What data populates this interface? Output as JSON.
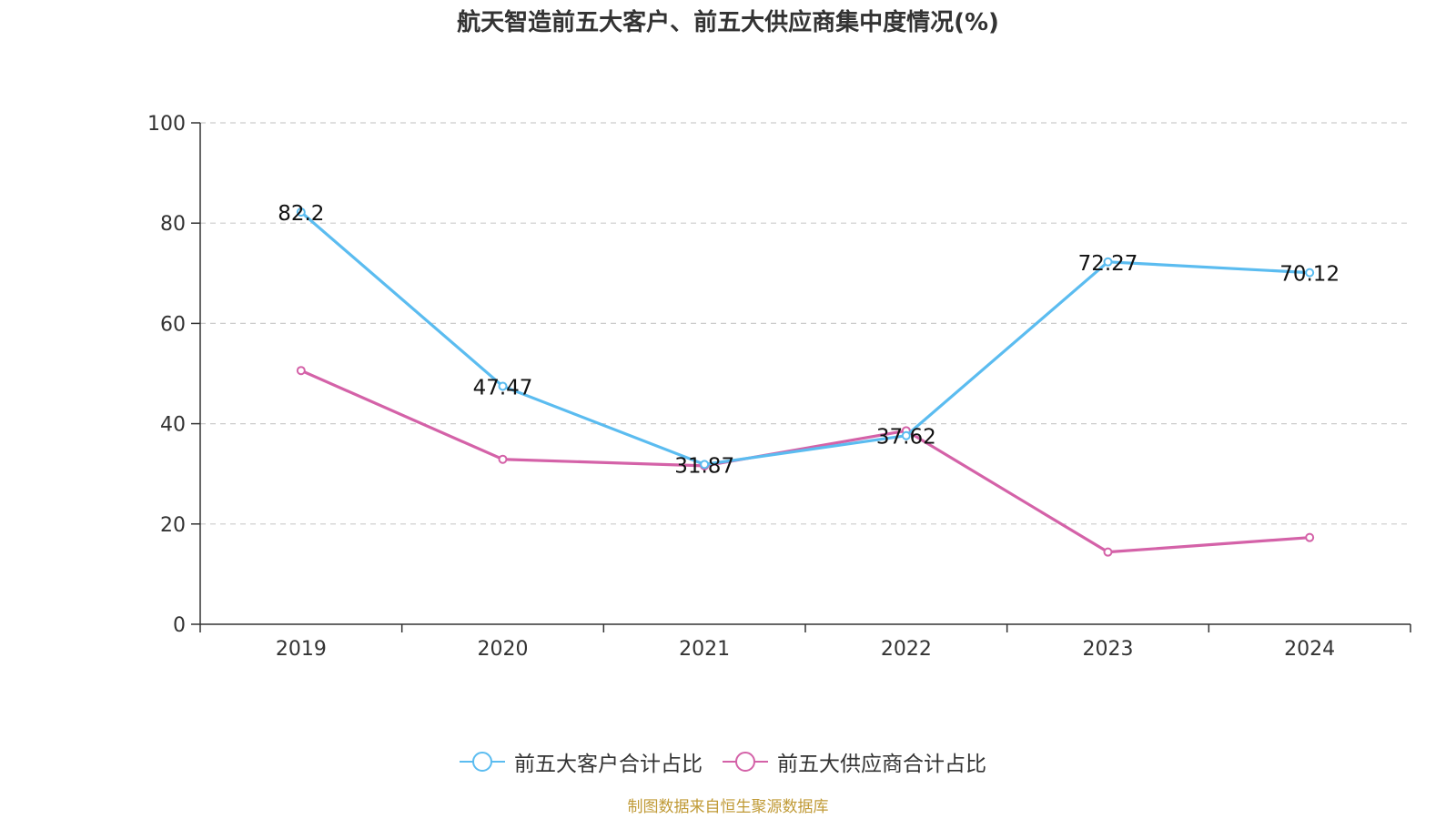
{
  "title": "航天智造前五大客户、前五大供应商集中度情况(%)",
  "source": "制图数据来自恒生聚源数据库",
  "chart_data": {
    "type": "line",
    "categories": [
      "2019",
      "2020",
      "2021",
      "2022",
      "2023",
      "2024"
    ],
    "ylim": [
      0,
      100
    ],
    "yticks": [
      0,
      20,
      40,
      60,
      80,
      100
    ],
    "grid": true,
    "legend_position": "bottom",
    "series": [
      {
        "name": "前五大客户合计占比",
        "color": "#5bbcf0",
        "values": [
          82.2,
          47.47,
          31.87,
          37.62,
          72.27,
          70.12
        ],
        "labels": [
          "82.2",
          "47.47",
          "31.87",
          "37.62",
          "72.27",
          "70.12"
        ]
      },
      {
        "name": "前五大供应商合计占比",
        "color": "#d462a8",
        "values": [
          50.6,
          32.9,
          31.6,
          38.6,
          14.4,
          17.3
        ]
      }
    ]
  }
}
